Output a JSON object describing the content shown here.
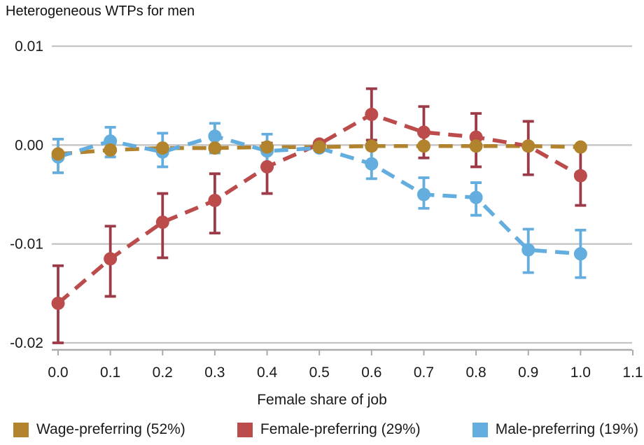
{
  "title": "Heterogeneous WTPs for men",
  "chart_data": {
    "type": "line",
    "title": "Heterogeneous WTPs for men",
    "xlabel": "Female share of job",
    "ylabel": "",
    "x_ticks": [
      "0.0",
      "0.1",
      "0.2",
      "0.3",
      "0.4",
      "0.5",
      "0.6",
      "0.7",
      "0.8",
      "0.9",
      "1.0",
      "1.1"
    ],
    "y_ticks": [
      "0.01",
      "0.00",
      "-0.01",
      "-0.02"
    ],
    "y_tick_values": [
      0.01,
      0,
      -0.01,
      -0.02
    ],
    "xlim": [
      0,
      1.1
    ],
    "ylim": [
      -0.0205,
      0.01
    ],
    "grid": "horizontal-only",
    "legend_position": "bottom",
    "line_style": "dashed-with-markers-and-error-bars",
    "grid_color": "#c4c4c4",
    "axis_color": "#ababab",
    "x": [
      0,
      0.1,
      0.2,
      0.3,
      0.4,
      0.5,
      0.6,
      0.7,
      0.8,
      0.9,
      1.0
    ],
    "series": [
      {
        "name": "Wage-preferring (52%)",
        "color": "#b1832c",
        "errorbar_color": "#b1832c",
        "values": [
          -0.0009,
          -0.0005,
          -0.0003,
          -0.0003,
          -0.0002,
          -0.0002,
          -0.0001,
          -0.0001,
          -0.0001,
          -0.0001,
          -0.0002
        ],
        "ci_low": null,
        "ci_high": null
      },
      {
        "name": "Female-preferring (29%)",
        "color": "#bc4c4c",
        "errorbar_color": "#9c3b47",
        "values": [
          -0.016,
          -0.0115,
          -0.0078,
          -0.0056,
          -0.0022,
          0.0001,
          0.0031,
          0.0013,
          0.0008,
          -0.0001,
          -0.0031
        ],
        "ci_low": [
          -0.02,
          -0.0153,
          -0.0114,
          -0.0089,
          -0.0049,
          null,
          0.0005,
          -0.0013,
          -0.0022,
          -0.003,
          -0.0061
        ],
        "ci_high": [
          -0.0122,
          -0.0082,
          -0.0049,
          -0.0029,
          0.0002,
          null,
          0.0057,
          0.0039,
          0.0032,
          0.0024,
          -0.0002
        ]
      },
      {
        "name": "Male-preferring (19%)",
        "color": "#63aede",
        "errorbar_color": "#63aede",
        "values": [
          -0.0012,
          0.0004,
          -0.0007,
          0.0009,
          -0.0006,
          -0.0003,
          -0.0019,
          -0.005,
          -0.0053,
          -0.0106,
          -0.011
        ],
        "ci_low": [
          -0.0028,
          -0.0012,
          -0.0022,
          -0.0008,
          -0.002,
          null,
          -0.0034,
          -0.0064,
          -0.0071,
          -0.0129,
          -0.0134
        ],
        "ci_high": [
          0.0006,
          0.0018,
          0.0012,
          0.0022,
          0.0011,
          null,
          -0.0003,
          -0.0033,
          -0.0038,
          -0.0085,
          -0.0086
        ]
      }
    ]
  }
}
